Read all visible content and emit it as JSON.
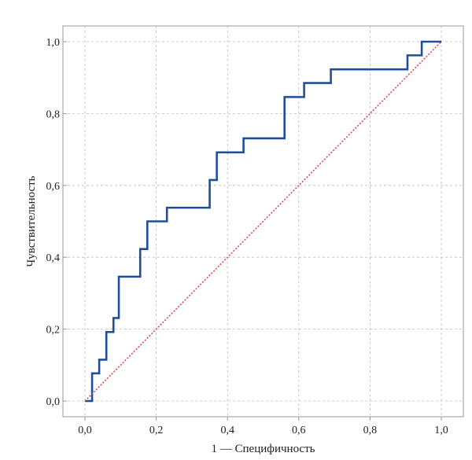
{
  "chart_data": {
    "type": "line",
    "title": "",
    "xlabel": "1 — Специфичность",
    "ylabel": "Чувствительность",
    "xlim": [
      0,
      1
    ],
    "ylim": [
      0,
      1
    ],
    "x_ticks": [
      0,
      0.2,
      0.4,
      0.6,
      0.8,
      1.0
    ],
    "y_ticks": [
      0,
      0.2,
      0.4,
      0.6,
      0.8,
      1.0
    ],
    "x_tick_labels": [
      "0,0",
      "0,2",
      "0,4",
      "0,6",
      "0,8",
      "1,0"
    ],
    "y_tick_labels": [
      "0,0",
      "0,2",
      "0,4",
      "0,6",
      "0,8",
      "1,0"
    ],
    "grid": true,
    "series": [
      {
        "style": "step",
        "color": "#1f4e9c",
        "points": [
          [
            0.0,
            0.0
          ],
          [
            0.02,
            0.0
          ],
          [
            0.02,
            0.077
          ],
          [
            0.04,
            0.077
          ],
          [
            0.04,
            0.115
          ],
          [
            0.06,
            0.115
          ],
          [
            0.06,
            0.192
          ],
          [
            0.08,
            0.192
          ],
          [
            0.08,
            0.231
          ],
          [
            0.095,
            0.231
          ],
          [
            0.095,
            0.346
          ],
          [
            0.155,
            0.346
          ],
          [
            0.155,
            0.423
          ],
          [
            0.175,
            0.423
          ],
          [
            0.175,
            0.5
          ],
          [
            0.23,
            0.5
          ],
          [
            0.23,
            0.538
          ],
          [
            0.35,
            0.538
          ],
          [
            0.35,
            0.615
          ],
          [
            0.37,
            0.615
          ],
          [
            0.37,
            0.692
          ],
          [
            0.445,
            0.692
          ],
          [
            0.445,
            0.731
          ],
          [
            0.56,
            0.731
          ],
          [
            0.56,
            0.846
          ],
          [
            0.615,
            0.846
          ],
          [
            0.615,
            0.885
          ],
          [
            0.69,
            0.885
          ],
          [
            0.69,
            0.923
          ],
          [
            0.905,
            0.923
          ],
          [
            0.905,
            0.962
          ],
          [
            0.945,
            0.962
          ],
          [
            0.945,
            1.0
          ],
          [
            1.0,
            1.0
          ]
        ]
      },
      {
        "style": "dotted",
        "color": "#d9443a",
        "points": [
          [
            0,
            0
          ],
          [
            1,
            1
          ]
        ]
      }
    ]
  }
}
